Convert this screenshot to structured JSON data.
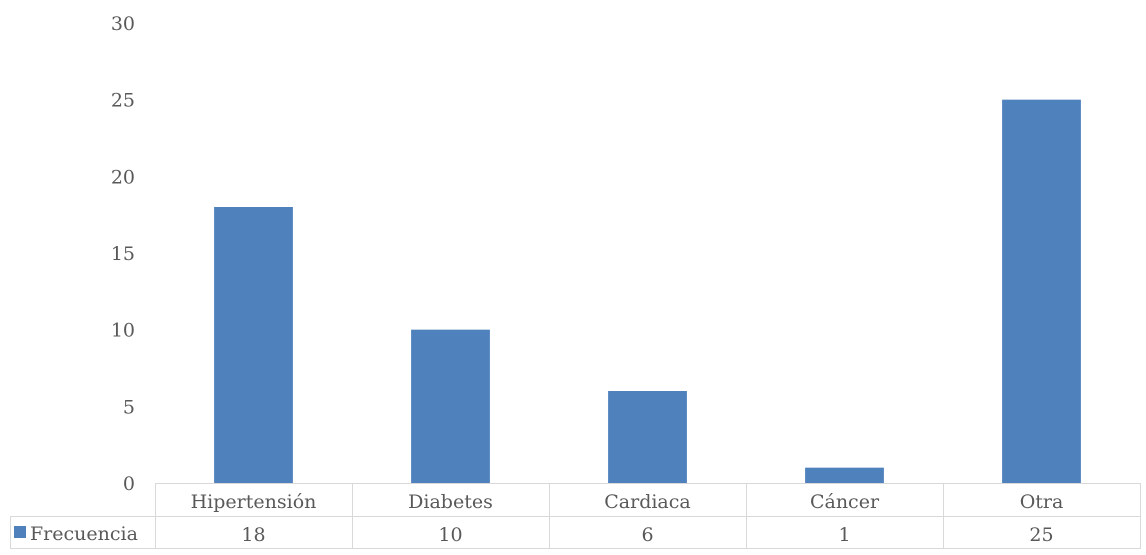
{
  "chart_data": {
    "type": "bar",
    "categories": [
      "Hipertensión",
      "Diabetes",
      "Cardiaca",
      "Cáncer",
      "Otra"
    ],
    "series": [
      {
        "name": "Frecuencia",
        "values": [
          18,
          10,
          6,
          1,
          25
        ],
        "color": "#4f81bd"
      }
    ],
    "ylim": [
      0,
      30
    ],
    "yticks": [
      0,
      5,
      10,
      15,
      20,
      25,
      30
    ],
    "grid": false,
    "legend": "data-table-left"
  }
}
